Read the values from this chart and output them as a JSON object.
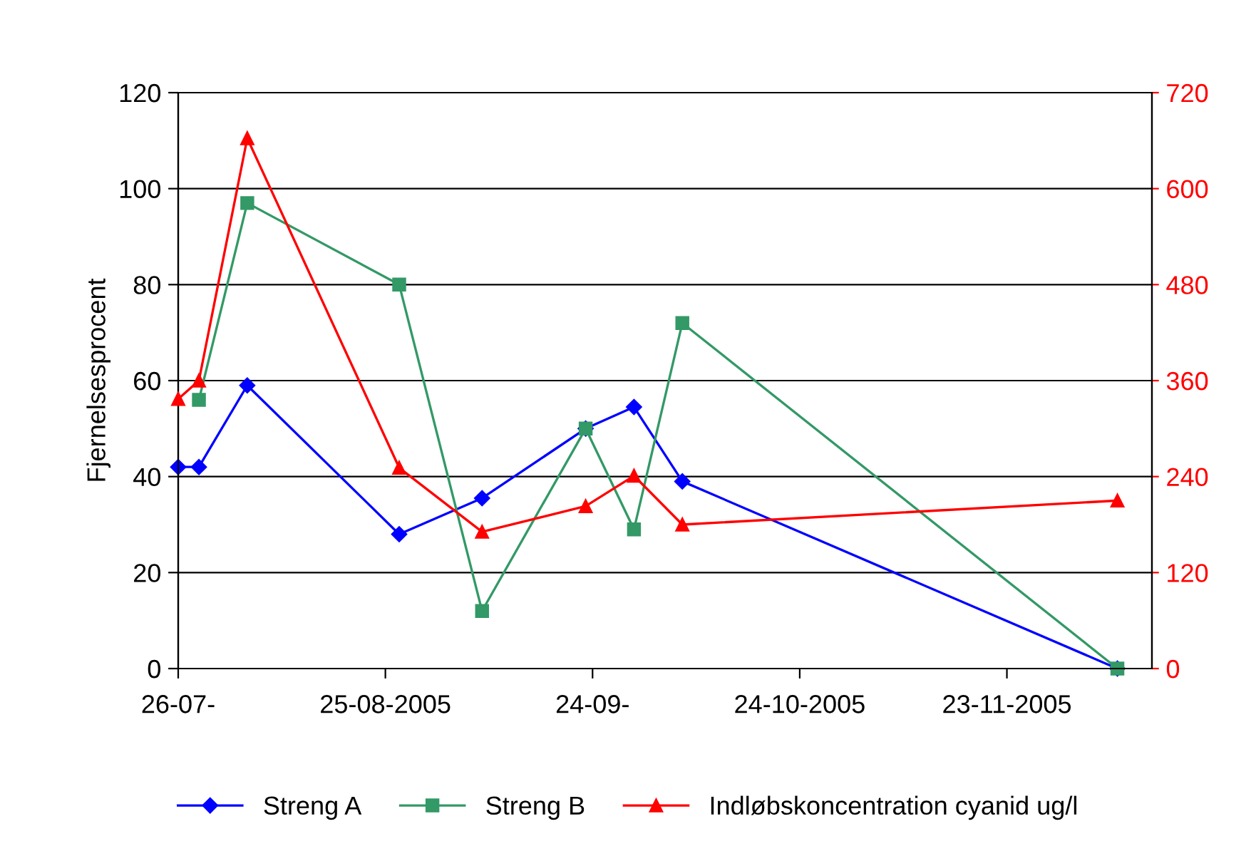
{
  "chart_data": {
    "type": "line",
    "ylabel": "Fjernelsesprocent",
    "xlim": [
      "2005-07-26",
      "2005-12-14"
    ],
    "xticks": [
      {
        "value": "2005-07-26",
        "label": "26-07-"
      },
      {
        "value": "2005-08-25",
        "label": "25-08-2005"
      },
      {
        "value": "2005-09-24",
        "label": "24-09-"
      },
      {
        "value": "2005-10-24",
        "label": "24-10-2005"
      },
      {
        "value": "2005-11-23",
        "label": "23-11-2005"
      }
    ],
    "ylim": [
      0,
      120
    ],
    "yticks": [
      0,
      20,
      40,
      60,
      80,
      100,
      120
    ],
    "y2lim": [
      0,
      720
    ],
    "y2ticks": [
      0,
      120,
      240,
      360,
      480,
      600,
      720
    ],
    "grid": "y",
    "legend": "bottom",
    "line_style": "solid",
    "series": [
      {
        "name": "Streng A",
        "color": "#0000ff",
        "marker": "diamond",
        "x": [
          "2005-07-26",
          "2005-07-29",
          "2005-08-05",
          "2005-08-27",
          "2005-09-08",
          "2005-09-23",
          "2005-09-30",
          "2005-10-07",
          "2005-12-09"
        ],
        "values": [
          42,
          42,
          59,
          28,
          35.5,
          50,
          54.5,
          39,
          0
        ]
      },
      {
        "name": "Streng B",
        "color": "#339966",
        "marker": "square",
        "x": [
          "2005-07-29",
          "2005-08-05",
          "2005-08-27",
          "2005-09-08",
          "2005-09-23",
          "2005-09-30",
          "2005-10-07",
          "2005-12-09"
        ],
        "values": [
          56,
          97,
          80,
          12,
          50,
          29,
          72,
          0
        ]
      },
      {
        "name": "Indløbskoncentration cyanid ug/l",
        "color": "#ff0000",
        "marker": "triangle",
        "axis": "y2",
        "x": [
          "2005-07-26",
          "2005-07-29",
          "2005-08-05",
          "2005-08-27",
          "2005-09-08",
          "2005-09-23",
          "2005-09-30",
          "2005-10-07",
          "2005-12-09"
        ],
        "values": [
          337,
          360,
          663,
          251,
          171,
          203,
          241,
          180,
          210
        ]
      }
    ]
  }
}
